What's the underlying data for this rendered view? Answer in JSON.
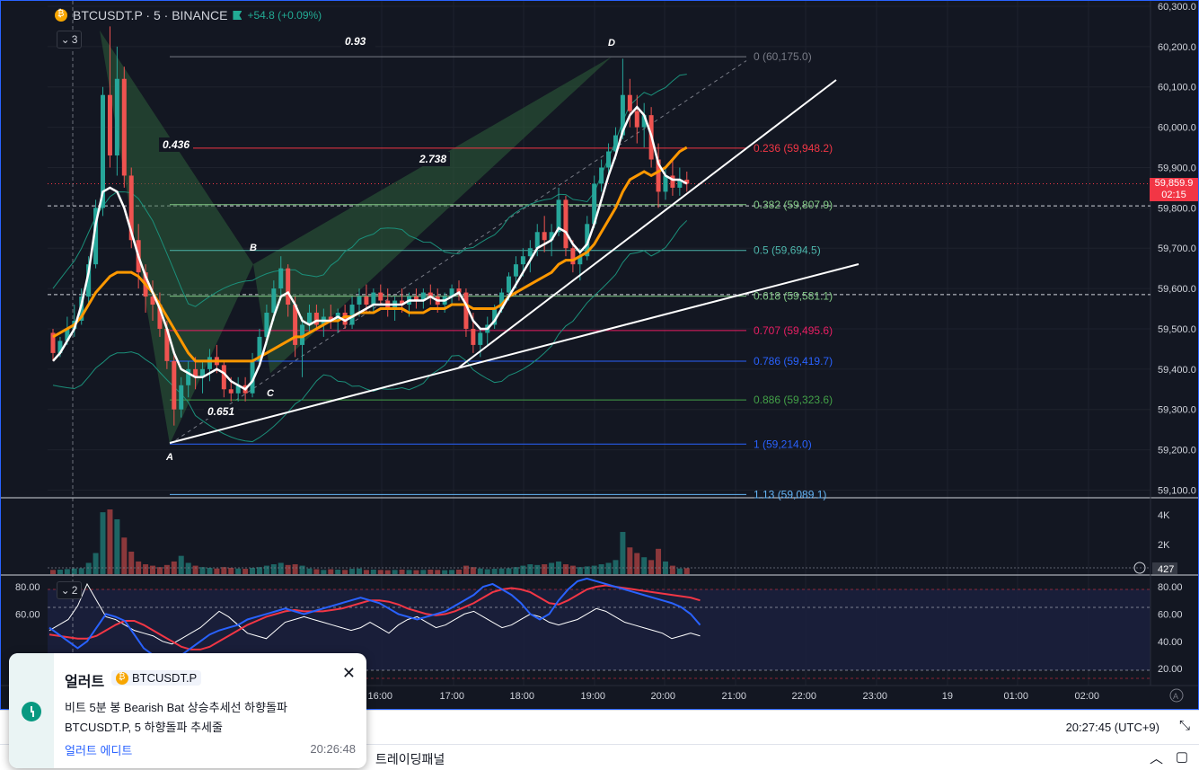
{
  "legend": {
    "symbol": "BTCUSDT.P · 5 · BINANCE",
    "change": "+54.8 (+0.09%)",
    "main_pane_badge": "3",
    "osc_pane_badge": "2"
  },
  "colors": {
    "background": "#131722",
    "up": "#26a69a",
    "down": "#ef5350",
    "ema_fast": "#ffffff",
    "ema_slow": "#ff9800",
    "bollinger": "#1b8f7a",
    "harmonic_fill": "#2e5e3a",
    "stoch_k": "#2962ff",
    "stoch_d": "#f23645",
    "rsi": "#ffffff"
  },
  "chart_data": {
    "type": "candlestick",
    "price_axis": {
      "ticks": [
        "60,300.0",
        "60,200.0",
        "60,100.0",
        "60,000.0",
        "59,900.0",
        "59,800.0",
        "59,700.0",
        "59,600.0",
        "59,500.0",
        "59,400.0",
        "59,300.0",
        "59,200.0",
        "59,100.0"
      ],
      "last_price": "59,859.9",
      "countdown": "02:15"
    },
    "time_axis": {
      "ticks": [
        "16:00",
        "17:00",
        "18:00",
        "19:00",
        "20:00",
        "21:00",
        "22:00",
        "23:00",
        "19",
        "01:00",
        "02:00"
      ]
    },
    "candles": [
      [
        59490,
        59500,
        59420,
        59440
      ],
      [
        59440,
        59480,
        59430,
        59470
      ],
      [
        59470,
        59530,
        59460,
        59500
      ],
      [
        59500,
        59560,
        59480,
        59520
      ],
      [
        59520,
        59600,
        59510,
        59580
      ],
      [
        59580,
        59680,
        59560,
        59660
      ],
      [
        59660,
        59820,
        59650,
        59800
      ],
      [
        59800,
        60100,
        59780,
        60080
      ],
      [
        60080,
        60250,
        59900,
        59930
      ],
      [
        59930,
        60200,
        59880,
        60120
      ],
      [
        60120,
        60150,
        59850,
        59880
      ],
      [
        59880,
        59900,
        59700,
        59720
      ],
      [
        59720,
        59760,
        59600,
        59640
      ],
      [
        59640,
        59660,
        59540,
        59580
      ],
      [
        59580,
        59620,
        59520,
        59560
      ],
      [
        59560,
        59590,
        59480,
        59500
      ],
      [
        59500,
        59520,
        59400,
        59420
      ],
      [
        59420,
        59440,
        59260,
        59300
      ],
      [
        59300,
        59380,
        59280,
        59360
      ],
      [
        59360,
        59420,
        59330,
        59400
      ],
      [
        59400,
        59430,
        59350,
        59380
      ],
      [
        59380,
        59420,
        59340,
        59400
      ],
      [
        59400,
        59450,
        59370,
        59430
      ],
      [
        59430,
        59460,
        59390,
        59410
      ],
      [
        59410,
        59420,
        59330,
        59350
      ],
      [
        59350,
        59380,
        59320,
        59340
      ],
      [
        59340,
        59380,
        59320,
        59360
      ],
      [
        59360,
        59380,
        59320,
        59340
      ],
      [
        59340,
        59440,
        59330,
        59420
      ],
      [
        59420,
        59500,
        59410,
        59480
      ],
      [
        59480,
        59560,
        59460,
        59540
      ],
      [
        59540,
        59620,
        59520,
        59600
      ],
      [
        59600,
        59680,
        59580,
        59650
      ],
      [
        59650,
        59660,
        59530,
        59560
      ],
      [
        59560,
        59580,
        59430,
        59460
      ],
      [
        59460,
        59530,
        59380,
        59510
      ],
      [
        59510,
        59560,
        59490,
        59540
      ],
      [
        59540,
        59560,
        59500,
        59510
      ],
      [
        59510,
        59550,
        59480,
        59530
      ],
      [
        59530,
        59560,
        59500,
        59520
      ],
      [
        59520,
        59550,
        59490,
        59540
      ],
      [
        59540,
        59560,
        59500,
        59510
      ],
      [
        59510,
        59580,
        59500,
        59560
      ],
      [
        59560,
        59600,
        59530,
        59580
      ],
      [
        59580,
        59610,
        59540,
        59560
      ],
      [
        59560,
        59600,
        59540,
        59590
      ],
      [
        59590,
        59610,
        59560,
        59570
      ],
      [
        59570,
        59600,
        59530,
        59550
      ],
      [
        59550,
        59580,
        59520,
        59570
      ],
      [
        59570,
        59600,
        59540,
        59560
      ],
      [
        59560,
        59590,
        59530,
        59580
      ],
      [
        59580,
        59600,
        59550,
        59570
      ],
      [
        59570,
        59600,
        59550,
        59590
      ],
      [
        59590,
        59610,
        59560,
        59580
      ],
      [
        59580,
        59600,
        59540,
        59560
      ],
      [
        59560,
        59590,
        59540,
        59580
      ],
      [
        59580,
        59610,
        59560,
        59600
      ],
      [
        59600,
        59620,
        59570,
        59590
      ],
      [
        59590,
        59600,
        59480,
        59500
      ],
      [
        59500,
        59540,
        59440,
        59460
      ],
      [
        59460,
        59500,
        59430,
        59490
      ],
      [
        59490,
        59530,
        59460,
        59510
      ],
      [
        59510,
        59560,
        59500,
        59550
      ],
      [
        59550,
        59600,
        59540,
        59590
      ],
      [
        59590,
        59640,
        59570,
        59630
      ],
      [
        59630,
        59680,
        59600,
        59660
      ],
      [
        59660,
        59700,
        59630,
        59680
      ],
      [
        59680,
        59720,
        59640,
        59700
      ],
      [
        59700,
        59760,
        59680,
        59740
      ],
      [
        59740,
        59780,
        59690,
        59720
      ],
      [
        59720,
        59760,
        59680,
        59740
      ],
      [
        59740,
        59850,
        59730,
        59820
      ],
      [
        59820,
        59830,
        59680,
        59700
      ],
      [
        59700,
        59720,
        59640,
        59660
      ],
      [
        59660,
        59700,
        59620,
        59680
      ],
      [
        59680,
        59780,
        59670,
        59760
      ],
      [
        59760,
        59880,
        59750,
        59860
      ],
      [
        59860,
        59920,
        59840,
        59900
      ],
      [
        59900,
        59960,
        59880,
        59940
      ],
      [
        59940,
        60000,
        59920,
        59980
      ],
      [
        59980,
        60170,
        59970,
        60080
      ],
      [
        60080,
        60120,
        60000,
        60040
      ],
      [
        60040,
        60080,
        59960,
        60000
      ],
      [
        60000,
        60060,
        59950,
        60030
      ],
      [
        60030,
        60050,
        59900,
        59920
      ],
      [
        59920,
        59960,
        59800,
        59840
      ],
      [
        59840,
        59900,
        59820,
        59880
      ],
      [
        59880,
        59920,
        59830,
        59850
      ],
      [
        59850,
        59900,
        59830,
        59870
      ],
      [
        59870,
        59890,
        59840,
        59860
      ]
    ],
    "ema_fast": [
      59420,
      59440,
      59470,
      59500,
      59560,
      59640,
      59760,
      59840,
      59850,
      59840,
      59800,
      59740,
      59680,
      59630,
      59590,
      59550,
      59500,
      59440,
      59400,
      59390,
      59380,
      59380,
      59390,
      59400,
      59390,
      59370,
      59360,
      59350,
      59370,
      59410,
      59470,
      59530,
      59580,
      59590,
      59560,
      59520,
      59510,
      59520,
      59520,
      59520,
      59530,
      59520,
      59530,
      59540,
      59550,
      59560,
      59560,
      59560,
      59560,
      59560,
      59570,
      59570,
      59570,
      59580,
      59570,
      59570,
      59580,
      59590,
      59560,
      59520,
      59500,
      59500,
      59520,
      59550,
      59580,
      59610,
      59640,
      59670,
      59700,
      59710,
      59720,
      59750,
      59740,
      59710,
      59690,
      59710,
      59760,
      59820,
      59880,
      59930,
      59990,
      60030,
      60050,
      60030,
      59980,
      59910,
      59880,
      59870,
      59870,
      59860
    ],
    "ema_slow": [
      59480,
      59490,
      59500,
      59510,
      59530,
      59560,
      59590,
      59610,
      59630,
      59640,
      59640,
      59640,
      59630,
      59610,
      59590,
      59560,
      59530,
      59500,
      59470,
      59440,
      59420,
      59420,
      59420,
      59420,
      59420,
      59420,
      59420,
      59420,
      59420,
      59430,
      59440,
      59450,
      59460,
      59470,
      59480,
      59480,
      59490,
      59500,
      59510,
      59520,
      59520,
      59530,
      59530,
      59540,
      59540,
      59540,
      59550,
      59550,
      59550,
      59550,
      59540,
      59540,
      59540,
      59550,
      59550,
      59550,
      59560,
      59560,
      59560,
      59550,
      59550,
      59550,
      59550,
      59560,
      59580,
      59590,
      59600,
      59610,
      59620,
      59630,
      59640,
      59660,
      59670,
      59670,
      59680,
      59690,
      59710,
      59740,
      59770,
      59800,
      59840,
      59870,
      59880,
      59890,
      59880,
      59890,
      59900,
      59920,
      59940,
      59950
    ],
    "fibonacci": [
      {
        "level": "0 (60,175.0)",
        "price": 60175,
        "color": "#787b86"
      },
      {
        "level": "0.236 (59,948.2)",
        "price": 59948.2,
        "color": "#f23645"
      },
      {
        "level": "0.382 (59,807.9)",
        "price": 59807.9,
        "color": "#81c784"
      },
      {
        "level": "0.5 (59,694.5)",
        "price": 59694.5,
        "color": "#4db6ac"
      },
      {
        "level": "0.618 (59,581.1)",
        "price": 59581.1,
        "color": "#81c784"
      },
      {
        "level": "0.707 (59,495.6)",
        "price": 59495.6,
        "color": "#e91e63"
      },
      {
        "level": "0.786 (59,419.7)",
        "price": 59419.7,
        "color": "#2962ff"
      },
      {
        "level": "0.886 (59,323.6)",
        "price": 59323.6,
        "color": "#43a047"
      },
      {
        "level": "1 (59,214.0)",
        "price": 59214,
        "color": "#2962ff"
      },
      {
        "level": "1.13 (59,089.1)",
        "price": 59089.1,
        "color": "#64b5f6"
      }
    ],
    "harmonic": {
      "points": [
        {
          "label": "",
          "price": 60240
        },
        {
          "label": "A",
          "price": 59214
        },
        {
          "label": "B",
          "price": 59660
        },
        {
          "label": "C",
          "price": 59390
        },
        {
          "label": "D",
          "price": 60175
        }
      ],
      "ratios": [
        "0.436",
        "0.651",
        "2.738",
        "0.93"
      ]
    },
    "volume_axis": {
      "ticks": [
        "4K",
        "2K"
      ],
      "last": "427"
    },
    "oscillator_axis": {
      "ticks": [
        "80.00",
        "60.00",
        "40.00",
        "20.00"
      ],
      "left_ticks": [
        "80.00",
        "60.00"
      ]
    },
    "volume": [
      300,
      320,
      360,
      400,
      420,
      800,
      1500,
      4400,
      4600,
      3900,
      2600,
      1600,
      900,
      700,
      600,
      500,
      650,
      900,
      1300,
      800,
      600,
      500,
      450,
      400,
      500,
      450,
      400,
      380,
      450,
      500,
      600,
      700,
      800,
      650,
      700,
      600,
      400,
      350,
      300,
      350,
      320,
      300,
      380,
      400,
      300,
      320,
      300,
      280,
      300,
      320,
      300,
      280,
      300,
      320,
      300,
      280,
      300,
      320,
      600,
      500,
      400,
      350,
      380,
      400,
      420,
      500,
      600,
      700,
      650,
      700,
      800,
      900,
      700,
      600,
      500,
      550,
      600,
      700,
      800,
      1000,
      3000,
      1900,
      1500,
      1200,
      1000,
      1800,
      900,
      600,
      400,
      427
    ],
    "stoch_k": [
      50,
      45,
      40,
      35,
      40,
      50,
      60,
      58,
      55,
      45,
      35,
      30,
      26,
      28,
      30,
      35,
      40,
      45,
      48,
      50,
      52,
      56,
      58,
      60,
      62,
      64,
      62,
      60,
      62,
      64,
      66,
      68,
      70,
      72,
      70,
      68,
      64,
      60,
      58,
      56,
      58,
      60,
      62,
      66,
      70,
      74,
      80,
      82,
      78,
      74,
      68,
      60,
      56,
      60,
      70,
      78,
      84,
      86,
      84,
      82,
      80,
      78,
      76,
      74,
      72,
      70,
      68,
      65,
      60,
      52
    ],
    "stoch_d": [
      45,
      44,
      43,
      42,
      42,
      44,
      48,
      52,
      55,
      55,
      52,
      48,
      44,
      40,
      36,
      34,
      34,
      36,
      40,
      44,
      48,
      52,
      55,
      58,
      60,
      62,
      63,
      62,
      62,
      62,
      63,
      64,
      66,
      68,
      70,
      70,
      69,
      67,
      64,
      62,
      60,
      59,
      60,
      62,
      65,
      68,
      72,
      76,
      78,
      79,
      78,
      76,
      72,
      68,
      67,
      70,
      74,
      78,
      80,
      81,
      80,
      79,
      78,
      77,
      76,
      75,
      74,
      73,
      72,
      70
    ],
    "rsi": [
      48,
      52,
      56,
      66,
      82,
      70,
      58,
      56,
      52,
      48,
      46,
      44,
      40,
      38,
      42,
      46,
      50,
      56,
      62,
      58,
      52,
      46,
      44,
      42,
      48,
      54,
      56,
      58,
      56,
      54,
      52,
      50,
      48,
      50,
      54,
      50,
      46,
      52,
      56,
      58,
      54,
      50,
      52,
      56,
      60,
      62,
      58,
      54,
      50,
      52,
      56,
      60,
      58,
      54,
      52,
      54,
      56,
      60,
      64,
      62,
      58,
      54,
      52,
      50,
      48,
      46,
      42,
      44,
      46,
      44
    ]
  },
  "status": {
    "clock": "20:27:45 (UTC+9)"
  },
  "panel_tab": "트레이딩패널",
  "toast": {
    "title": "얼러트",
    "symbol": "BTCUSDT.P",
    "line1": "비트 5분 봉 Bearish Bat 상승추세선 하향돌파",
    "line2": "BTCUSDT.P, 5 하향돌파 추세줄",
    "edit_link": "얼러트 에디트",
    "time": "20:26:48",
    "close": "✕"
  }
}
